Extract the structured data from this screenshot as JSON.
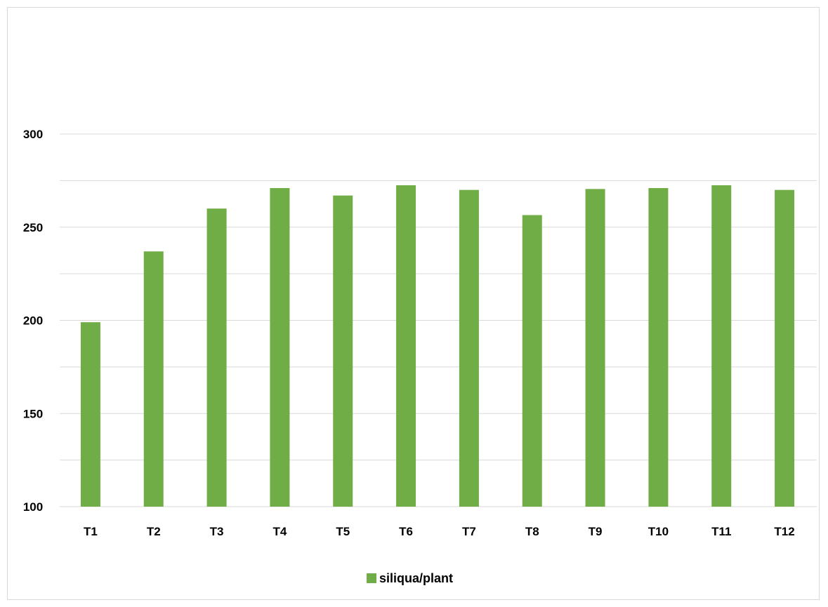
{
  "chart_data": {
    "type": "bar",
    "title": "",
    "xlabel": "",
    "ylabel": "",
    "categories": [
      "T1",
      "T2",
      "T3",
      "T4",
      "T5",
      "T6",
      "T7",
      "T8",
      "T9",
      "T10",
      "T11",
      "T12"
    ],
    "series": [
      {
        "name": "siliqua/plant",
        "color": "#70ad47",
        "values": [
          199,
          237,
          260,
          271,
          267,
          272.5,
          270,
          256.5,
          270.5,
          271,
          272.5,
          270
        ]
      }
    ],
    "ylim": [
      100,
      300
    ],
    "yticks": [
      100,
      150,
      200,
      250,
      300
    ],
    "gridlines": [
      125,
      150,
      175,
      200,
      225,
      250,
      275,
      300
    ],
    "grid": true,
    "legend": "bottom-center"
  }
}
